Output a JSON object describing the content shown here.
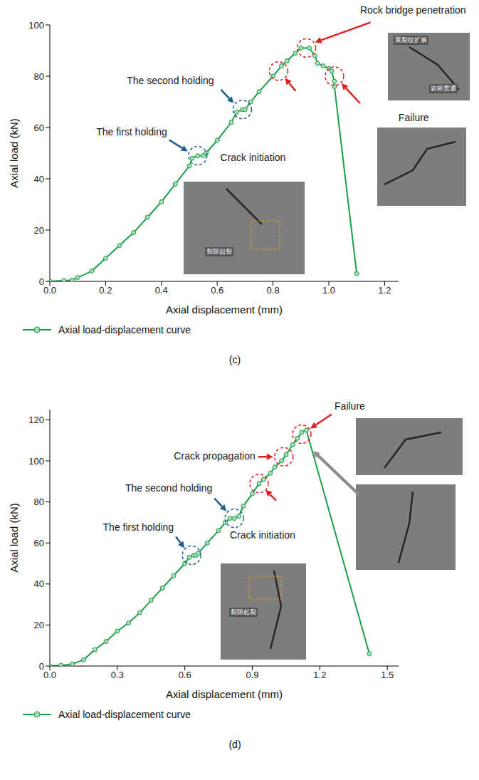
{
  "chart_data": [
    {
      "type": "line",
      "caption": "(c)",
      "x_label": "Axial displacement (mm)",
      "y_label": "Axial load (kN)",
      "x": [
        0,
        0.05,
        0.08,
        0.1,
        0.15,
        0.2,
        0.25,
        0.3,
        0.35,
        0.4,
        0.45,
        0.5,
        0.51,
        0.53,
        0.55,
        0.56,
        0.6,
        0.65,
        0.67,
        0.69,
        0.7,
        0.72,
        0.75,
        0.8,
        0.83,
        0.85,
        0.88,
        0.9,
        0.93,
        0.95,
        0.96,
        0.98,
        1.0,
        1.01,
        1.02,
        1.02,
        1.1
      ],
      "series": [
        {
          "name": "Axial load-displacement curve",
          "color": "#1e9e48",
          "marker": "circle",
          "values": [
            0,
            0.3,
            0.5,
            1.5,
            4,
            9,
            14,
            19,
            25,
            31,
            38,
            45,
            48,
            49,
            49,
            50,
            55,
            62,
            66,
            67,
            67,
            70,
            74,
            80,
            84,
            86,
            89,
            91,
            91,
            88,
            85,
            84,
            83,
            82,
            78,
            76,
            3
          ]
        }
      ],
      "xlim": [
        0,
        1.25
      ],
      "ylim": [
        0,
        100
      ],
      "xticks": [
        {
          "value": 0,
          "label": "0.0"
        },
        0.2,
        0.4,
        0.6,
        0.8,
        {
          "value": 1,
          "label": "1.0"
        },
        1.2
      ],
      "yticks": [
        0,
        20,
        40,
        60,
        80,
        100
      ],
      "grid": false,
      "legend": "bottom",
      "annotations": [
        {
          "text": "The first holding",
          "x": 0.53,
          "y": 49,
          "color": "#1f5f8b"
        },
        {
          "text": "The second holding",
          "x": 0.69,
          "y": 67,
          "color": "#1f5f8b"
        },
        {
          "text": "Crack initiation",
          "x": 0.82,
          "y": 82,
          "color": "#e02020"
        },
        {
          "text": "Rock bridge penetration",
          "x": 0.92,
          "y": 91,
          "color": "#e02020"
        },
        {
          "text": "Failure",
          "x": 1.02,
          "y": 80,
          "color": "#e02020"
        }
      ],
      "photos": [
        {
          "labels": [
            "裂隙起裂"
          ]
        },
        {
          "labels": [
            "翼裂纹扩展",
            "岩桥贯通"
          ]
        },
        {
          "labels": []
        }
      ]
    },
    {
      "type": "line",
      "caption": "(d)",
      "x_label": "Axial displacement (mm)",
      "y_label": "Axial load (kN)",
      "x": [
        0,
        0.05,
        0.1,
        0.15,
        0.2,
        0.25,
        0.3,
        0.35,
        0.4,
        0.45,
        0.5,
        0.55,
        0.6,
        0.62,
        0.64,
        0.65,
        0.66,
        0.7,
        0.75,
        0.78,
        0.8,
        0.82,
        0.84,
        0.86,
        0.9,
        0.93,
        0.95,
        0.98,
        1.0,
        1.03,
        1.05,
        1.08,
        1.1,
        1.12,
        1.14,
        1.42
      ],
      "series": [
        {
          "name": "Axial load-displacement curve",
          "color": "#1e9e48",
          "marker": "circle",
          "values": [
            0,
            0.3,
            1,
            3,
            8,
            12,
            17,
            21,
            26,
            32,
            38,
            44,
            50,
            53,
            54,
            54,
            55,
            60,
            66,
            70,
            72,
            72,
            73,
            78,
            84,
            89,
            91,
            94,
            97,
            100,
            103,
            108,
            111,
            114,
            115,
            6
          ]
        }
      ],
      "xlim": [
        0,
        1.55
      ],
      "ylim": [
        0,
        125
      ],
      "xticks": [
        {
          "value": 0,
          "label": "0.0"
        },
        0.3,
        0.6,
        0.9,
        1.2,
        1.5
      ],
      "yticks": [
        0,
        20,
        40,
        60,
        80,
        100,
        120
      ],
      "grid": false,
      "legend": "bottom",
      "annotations": [
        {
          "text": "The first holding",
          "x": 0.63,
          "y": 54,
          "color": "#1f5f8b"
        },
        {
          "text": "The second holding",
          "x": 0.82,
          "y": 72,
          "color": "#1f5f8b"
        },
        {
          "text": "Crack initiation",
          "x": 0.93,
          "y": 89,
          "color": "#e02020"
        },
        {
          "text": "Crack propagation",
          "x": 1.04,
          "y": 102,
          "color": "#e02020"
        },
        {
          "text": "Failure",
          "x": 1.12,
          "y": 113,
          "color": "#e02020"
        }
      ],
      "photos": [
        {
          "labels": [
            "裂隙起裂"
          ]
        },
        {
          "labels": []
        },
        {
          "labels": []
        }
      ]
    }
  ]
}
